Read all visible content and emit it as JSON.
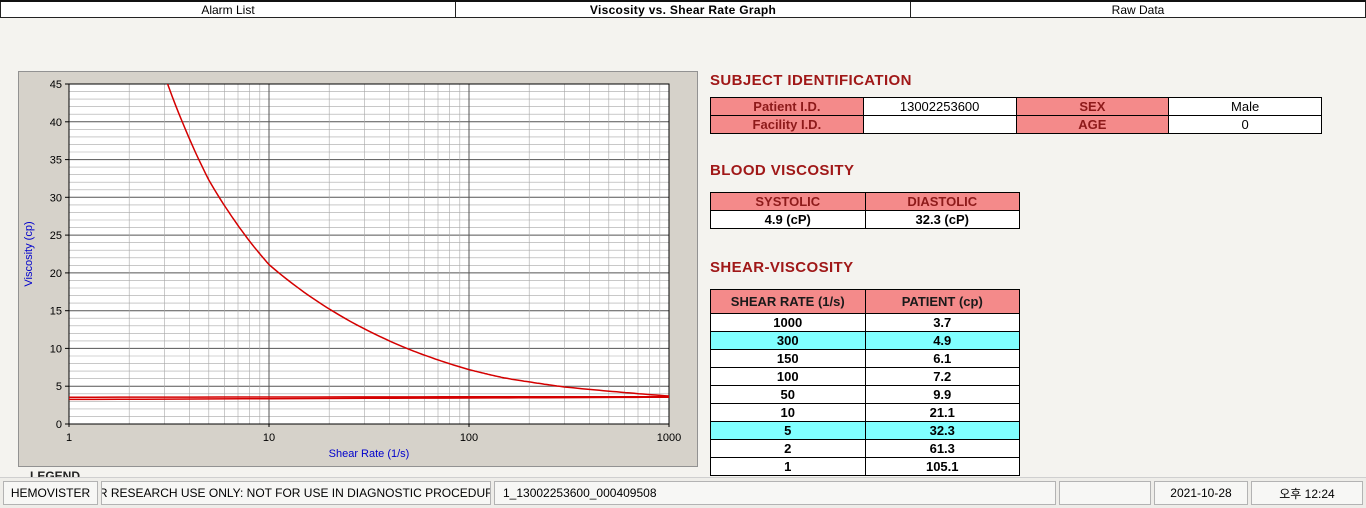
{
  "tabs": [
    {
      "label": "Alarm List",
      "active": false
    },
    {
      "label": "Viscosity vs. Shear Rate Graph",
      "active": true
    },
    {
      "label": "Raw Data",
      "active": false
    }
  ],
  "chart_panel": {
    "legend_label": "LEGEND"
  },
  "chart_data": {
    "type": "line",
    "title": "",
    "xlabel": "Shear Rate (1/s)",
    "ylabel": "Viscosity (cp)",
    "x_scale": "log",
    "xlim": [
      1,
      1000
    ],
    "ylim": [
      0,
      45
    ],
    "x_ticks": [
      1,
      10,
      100,
      1000
    ],
    "y_ticks": [
      0,
      5,
      10,
      15,
      20,
      25,
      30,
      35,
      40,
      45
    ],
    "grid": true,
    "line_color": "#d40000",
    "series": [
      {
        "name": "patient-viscosity-curve",
        "color": "#d40000",
        "x": [
          1,
          2,
          5,
          10,
          50,
          100,
          150,
          300,
          1000
        ],
        "y": [
          105.1,
          61.3,
          32.3,
          21.1,
          9.9,
          7.2,
          6.1,
          4.9,
          3.7
        ]
      },
      {
        "name": "reference-line-upper",
        "color": "#d40000",
        "x": [
          1,
          1000
        ],
        "y": [
          3.55,
          3.62
        ]
      },
      {
        "name": "reference-line-lower",
        "color": "#d40000",
        "x": [
          1,
          1000
        ],
        "y": [
          3.25,
          3.55
        ]
      }
    ]
  },
  "subject": {
    "title": "SUBJECT IDENTIFICATION",
    "rows": [
      {
        "label1": "Patient I.D.",
        "value1": "13002253600",
        "label2": "SEX",
        "value2": "Male"
      },
      {
        "label1": "Facility I.D.",
        "value1": "",
        "label2": "AGE",
        "value2": "0"
      }
    ]
  },
  "blood_viscosity": {
    "title": "BLOOD VISCOSITY",
    "headers": [
      "SYSTOLIC",
      "DIASTOLIC"
    ],
    "values": [
      "4.9 (cP)",
      "32.3 (cP)"
    ]
  },
  "shear_viscosity": {
    "title": "SHEAR-VISCOSITY",
    "headers": [
      "SHEAR RATE (1/s)",
      "PATIENT (cp)"
    ],
    "rows": [
      {
        "rate": "1000",
        "value": "3.7",
        "highlight": false
      },
      {
        "rate": "300",
        "value": "4.9",
        "highlight": true
      },
      {
        "rate": "150",
        "value": "6.1",
        "highlight": false
      },
      {
        "rate": "100",
        "value": "7.2",
        "highlight": false
      },
      {
        "rate": "50",
        "value": "9.9",
        "highlight": false
      },
      {
        "rate": "10",
        "value": "21.1",
        "highlight": false
      },
      {
        "rate": "5",
        "value": "32.3",
        "highlight": true
      },
      {
        "rate": "2",
        "value": "61.3",
        "highlight": false
      },
      {
        "rate": "1",
        "value": "105.1",
        "highlight": false
      }
    ]
  },
  "statusbar": {
    "brand": "HEMOVISTER",
    "research_notice": "FOR RESEARCH USE ONLY: NOT FOR USE IN DIAGNOSTIC PROCEDURES",
    "file_id": "1_13002253600_000409508",
    "date": "2021-10-28",
    "time": "오후 12:24"
  }
}
